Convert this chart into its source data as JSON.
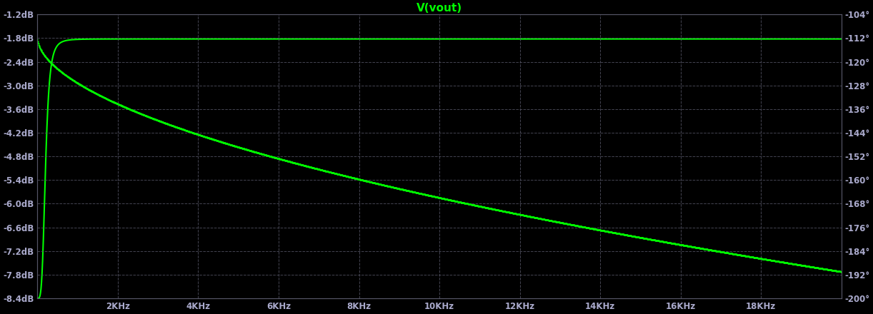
{
  "title": "V(vout)",
  "title_color": "#00ff00",
  "background_color": "#000000",
  "plot_bg_color": "#000000",
  "grid_color": "#555555",
  "line_color": "#00ff00",
  "fig_width": 12.22,
  "fig_height": 4.4,
  "dpi": 100,
  "x_min": 0,
  "x_max": 20000,
  "x_ticks": [
    2000,
    4000,
    6000,
    8000,
    10000,
    12000,
    14000,
    16000,
    18000
  ],
  "x_tick_labels": [
    "2KHz",
    "4KHz",
    "6KHz",
    "8KHz",
    "10KHz",
    "12KHz",
    "14KHz",
    "16KHz",
    "18KHz"
  ],
  "y_left_min": -8.4,
  "y_left_max": -1.2,
  "y_left_ticks": [
    -8.4,
    -7.8,
    -7.2,
    -6.6,
    -6.0,
    -5.4,
    -4.8,
    -4.2,
    -3.6,
    -3.0,
    -2.4,
    -1.8,
    -1.2
  ],
  "y_left_labels": [
    "-8.4dB",
    "-7.8dB",
    "-7.2dB",
    "-6.6dB",
    "-6.0dB",
    "-5.4dB",
    "-4.8dB",
    "-4.2dB",
    "-3.6dB",
    "-3.0dB",
    "-2.4dB",
    "-1.8dB",
    "-1.2dB"
  ],
  "y_right_min": -200,
  "y_right_max": -104,
  "y_right_ticks": [
    -200,
    -192,
    -184,
    -176,
    -168,
    -160,
    -152,
    -144,
    -136,
    -128,
    -120,
    -112,
    -104
  ],
  "y_right_labels": [
    "-200°",
    "-192°",
    "-184°",
    "-176°",
    "-168°",
    "-160°",
    "-152°",
    "-144°",
    "-136°",
    "-128°",
    "-120°",
    "-112°",
    "-104°"
  ],
  "mag_high_db": -1.82,
  "mag_low_db": -8.4,
  "mag_knee_freq": 200,
  "mag_steepness": 4.0,
  "phase_start_deg": -112.0,
  "phase_end_deg": -191.0,
  "phase_knee_freq": 4000,
  "phase_steepness": 0.55
}
